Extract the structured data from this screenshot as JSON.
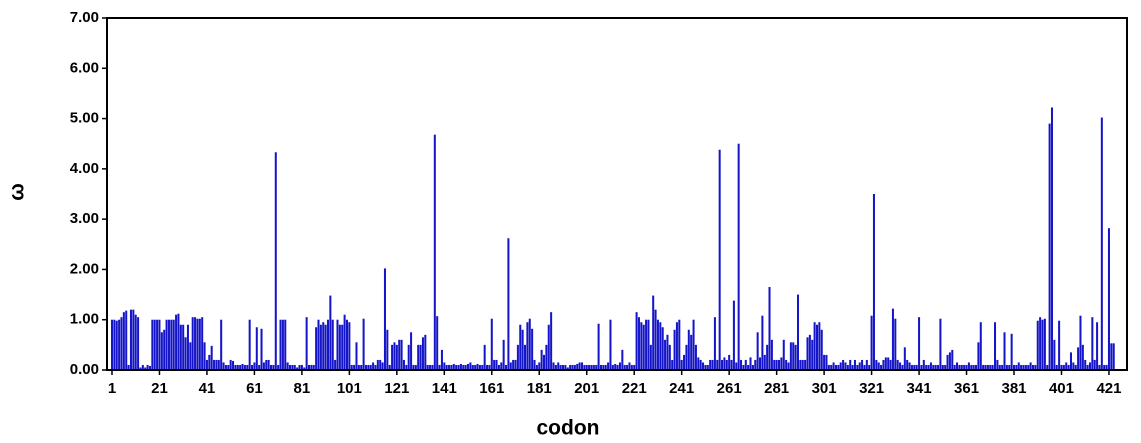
{
  "chart_data": {
    "type": "bar",
    "x_label": "codon",
    "y_label": "ω",
    "color": "#1414c8",
    "xlim": [
      -1.1,
      428.6
    ],
    "ylim": [
      0,
      7
    ],
    "xticks": [
      1,
      21,
      41,
      61,
      81,
      101,
      121,
      141,
      161,
      181,
      201,
      221,
      241,
      261,
      281,
      301,
      321,
      341,
      361,
      381,
      401,
      421
    ],
    "yticks": [
      {
        "value": 0,
        "label": "0.00"
      },
      {
        "value": 1,
        "label": "1.00"
      },
      {
        "value": 2,
        "label": "2.00"
      },
      {
        "value": 3,
        "label": "3.00"
      },
      {
        "value": 4,
        "label": "4.00"
      },
      {
        "value": 5,
        "label": "5.00"
      },
      {
        "value": 6,
        "label": "6.00"
      },
      {
        "value": 7,
        "label": "7.00"
      }
    ],
    "x": [
      1,
      2,
      3,
      4,
      5,
      6,
      7,
      8,
      9,
      10,
      11,
      12,
      13,
      14,
      15,
      16,
      17,
      18,
      19,
      20,
      21,
      22,
      23,
      24,
      25,
      26,
      27,
      28,
      29,
      30,
      31,
      32,
      33,
      34,
      35,
      36,
      37,
      38,
      39,
      40,
      41,
      42,
      43,
      44,
      45,
      46,
      47,
      48,
      49,
      50,
      51,
      52,
      53,
      54,
      55,
      56,
      57,
      58,
      59,
      60,
      61,
      62,
      63,
      64,
      65,
      66,
      67,
      68,
      69,
      70,
      71,
      72,
      73,
      74,
      75,
      76,
      77,
      78,
      79,
      80,
      81,
      82,
      83,
      84,
      85,
      86,
      87,
      88,
      89,
      90,
      91,
      92,
      93,
      94,
      95,
      96,
      97,
      98,
      99,
      100,
      101,
      102,
      103,
      104,
      105,
      106,
      107,
      108,
      109,
      110,
      111,
      112,
      113,
      114,
      115,
      116,
      117,
      118,
      119,
      120,
      121,
      122,
      123,
      124,
      125,
      126,
      127,
      128,
      129,
      130,
      131,
      132,
      133,
      134,
      135,
      136,
      137,
      138,
      139,
      140,
      141,
      142,
      143,
      144,
      145,
      146,
      147,
      148,
      149,
      150,
      151,
      152,
      153,
      154,
      155,
      156,
      157,
      158,
      159,
      160,
      161,
      162,
      163,
      164,
      165,
      166,
      167,
      168,
      169,
      170,
      171,
      172,
      173,
      174,
      175,
      176,
      177,
      178,
      179,
      180,
      181,
      182,
      183,
      184,
      185,
      186,
      187,
      188,
      189,
      190,
      191,
      192,
      193,
      194,
      195,
      196,
      197,
      198,
      199,
      200,
      201,
      202,
      203,
      204,
      205,
      206,
      207,
      208,
      209,
      210,
      211,
      212,
      213,
      214,
      215,
      216,
      217,
      218,
      219,
      220,
      221,
      222,
      223,
      224,
      225,
      226,
      227,
      228,
      229,
      230,
      231,
      232,
      233,
      234,
      235,
      236,
      237,
      238,
      239,
      240,
      241,
      242,
      243,
      244,
      245,
      246,
      247,
      248,
      249,
      250,
      251,
      252,
      253,
      254,
      255,
      256,
      257,
      258,
      259,
      260,
      261,
      262,
      263,
      264,
      265,
      266,
      267,
      268,
      269,
      270,
      271,
      272,
      273,
      274,
      275,
      276,
      277,
      278,
      279,
      280,
      281,
      282,
      283,
      284,
      285,
      286,
      287,
      288,
      289,
      290,
      291,
      292,
      293,
      294,
      295,
      296,
      297,
      298,
      299,
      300,
      301,
      302,
      303,
      304,
      305,
      306,
      307,
      308,
      309,
      310,
      311,
      312,
      313,
      314,
      315,
      316,
      317,
      318,
      319,
      320,
      321,
      322,
      323,
      324,
      325,
      326,
      327,
      328,
      329,
      330,
      331,
      332,
      333,
      334,
      335,
      336,
      337,
      338,
      339,
      340,
      341,
      342,
      343,
      344,
      345,
      346,
      347,
      348,
      349,
      350,
      351,
      352,
      353,
      354,
      355,
      356,
      357,
      358,
      359,
      360,
      361,
      362,
      363,
      364,
      365,
      366,
      367,
      368,
      369,
      370,
      371,
      372,
      373,
      374,
      375,
      376,
      377,
      378,
      379,
      380,
      381,
      382,
      383,
      384,
      385,
      386,
      387,
      388,
      389,
      390,
      391,
      392,
      393,
      394,
      395,
      396,
      397,
      398,
      399,
      400,
      401,
      402,
      403,
      404,
      405,
      406,
      407,
      408,
      409,
      410,
      411,
      412,
      413,
      414,
      415,
      416,
      417,
      418,
      419,
      420,
      421,
      422,
      423
    ],
    "values": [
      1.0,
      1.0,
      0.98,
      1.0,
      1.05,
      1.15,
      1.18,
      0.1,
      1.2,
      1.2,
      1.1,
      1.05,
      0.05,
      0.1,
      0.05,
      0.1,
      0.08,
      1.0,
      1.0,
      1.0,
      1.0,
      0.75,
      0.8,
      1.0,
      1.0,
      1.0,
      1.0,
      1.1,
      1.12,
      0.9,
      0.9,
      0.65,
      0.9,
      0.55,
      1.05,
      1.05,
      1.02,
      1.02,
      1.05,
      0.55,
      0.2,
      0.3,
      0.48,
      0.2,
      0.2,
      0.2,
      1.0,
      0.15,
      0.1,
      0.1,
      0.2,
      0.18,
      0.1,
      0.1,
      0.1,
      0.12,
      0.1,
      0.1,
      1.0,
      0.1,
      0.15,
      0.85,
      0.1,
      0.82,
      0.15,
      0.2,
      0.2,
      0.1,
      0.1,
      4.33,
      0.1,
      1.0,
      1.0,
      1.0,
      0.15,
      0.1,
      0.1,
      0.1,
      0.05,
      0.1,
      0.1,
      0.05,
      1.05,
      0.1,
      0.1,
      0.1,
      0.85,
      1.0,
      0.9,
      0.95,
      0.9,
      1.0,
      1.48,
      1.0,
      0.2,
      1.0,
      0.9,
      0.9,
      1.1,
      1.0,
      0.95,
      0.1,
      0.1,
      0.55,
      0.1,
      0.1,
      1.02,
      0.1,
      0.1,
      0.1,
      0.15,
      0.1,
      0.2,
      0.2,
      0.15,
      2.02,
      0.8,
      0.1,
      0.5,
      0.55,
      0.5,
      0.6,
      0.6,
      0.2,
      0.1,
      0.5,
      0.75,
      0.1,
      0.1,
      0.5,
      0.5,
      0.65,
      0.7,
      0.1,
      0.1,
      0.1,
      4.68,
      1.07,
      0.1,
      0.4,
      0.15,
      0.1,
      0.1,
      0.1,
      0.12,
      0.1,
      0.1,
      0.12,
      0.1,
      0.1,
      0.12,
      0.15,
      0.1,
      0.1,
      0.12,
      0.1,
      0.1,
      0.5,
      0.1,
      0.1,
      1.02,
      0.2,
      0.2,
      0.1,
      0.15,
      0.6,
      0.1,
      2.62,
      0.15,
      0.2,
      0.2,
      0.5,
      0.9,
      0.8,
      0.5,
      0.95,
      1.02,
      0.82,
      0.2,
      0.1,
      0.15,
      0.4,
      0.3,
      0.5,
      0.9,
      1.15,
      0.15,
      0.1,
      0.15,
      0.1,
      0.1,
      0.1,
      0.05,
      0.1,
      0.1,
      0.1,
      0.12,
      0.15,
      0.15,
      0.1,
      0.1,
      0.1,
      0.1,
      0.1,
      0.1,
      0.92,
      0.1,
      0.1,
      0.1,
      0.15,
      1.0,
      0.1,
      0.12,
      0.1,
      0.15,
      0.4,
      0.1,
      0.1,
      0.15,
      0.1,
      0.1,
      1.15,
      1.05,
      0.95,
      0.9,
      1.0,
      1.0,
      0.5,
      1.48,
      1.2,
      1.0,
      0.95,
      0.85,
      0.6,
      0.7,
      0.5,
      0.2,
      0.8,
      0.95,
      1.0,
      0.2,
      0.3,
      0.5,
      0.8,
      0.7,
      1.0,
      0.5,
      0.25,
      0.2,
      0.15,
      0.1,
      0.1,
      0.2,
      0.2,
      1.05,
      0.2,
      4.38,
      0.2,
      0.25,
      0.2,
      0.3,
      0.2,
      1.38,
      0.15,
      4.5,
      0.2,
      0.1,
      0.2,
      0.1,
      0.25,
      0.1,
      0.2,
      0.75,
      0.25,
      1.08,
      0.3,
      0.5,
      1.65,
      0.6,
      0.2,
      0.2,
      0.2,
      0.25,
      0.6,
      0.2,
      0.15,
      0.55,
      0.55,
      0.5,
      1.5,
      0.2,
      0.2,
      0.2,
      0.65,
      0.7,
      0.6,
      0.95,
      0.9,
      0.95,
      0.8,
      0.3,
      0.3,
      0.1,
      0.1,
      0.15,
      0.1,
      0.1,
      0.15,
      0.2,
      0.15,
      0.1,
      0.2,
      0.1,
      0.2,
      0.1,
      0.15,
      0.2,
      0.1,
      0.2,
      0.1,
      1.08,
      3.5,
      0.2,
      0.15,
      0.1,
      0.2,
      0.25,
      0.25,
      0.2,
      1.22,
      1.02,
      0.2,
      0.15,
      0.1,
      0.45,
      0.2,
      0.15,
      0.1,
      0.1,
      0.1,
      1.05,
      0.1,
      0.2,
      0.1,
      0.1,
      0.15,
      0.1,
      0.1,
      0.1,
      1.02,
      0.1,
      0.1,
      0.3,
      0.35,
      0.4,
      0.1,
      0.15,
      0.1,
      0.1,
      0.1,
      0.1,
      0.15,
      0.1,
      0.1,
      0.1,
      0.55,
      0.95,
      0.1,
      0.1,
      0.1,
      0.1,
      0.1,
      0.95,
      0.2,
      0.1,
      0.1,
      0.75,
      0.1,
      0.1,
      0.72,
      0.1,
      0.1,
      0.15,
      0.1,
      0.1,
      0.1,
      0.1,
      0.15,
      0.1,
      0.1,
      0.98,
      1.05,
      1.0,
      1.02,
      0.1,
      4.9,
      5.22,
      0.6,
      0.1,
      0.98,
      0.1,
      0.1,
      0.15,
      0.1,
      0.35,
      0.15,
      0.1,
      0.45,
      1.08,
      0.5,
      0.2,
      0.1,
      0.15,
      1.05,
      0.2,
      0.95,
      0.1,
      5.02,
      0.1,
      0.1,
      2.82,
      0.53,
      0.53
    ]
  }
}
